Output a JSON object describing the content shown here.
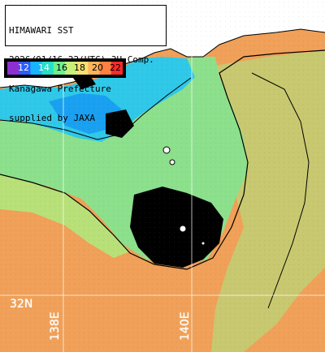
{
  "title": {
    "line1": "HIMAWARI SST",
    "line2": "2026/01/16 22(UTC) 3H Comp.",
    "line3": "Kanagawa Prefecture",
    "line4": "supplied by JAXA"
  },
  "legend": {
    "labels": [
      "12",
      "14",
      "16",
      "18",
      "20",
      "22"
    ],
    "colors": [
      "#8e2fd2",
      "#2a5cff",
      "#18b4ff",
      "#25e0c8",
      "#6ef08a",
      "#c8f078",
      "#f5e070",
      "#ffb45a",
      "#ff8040",
      "#ff2a2a"
    ]
  },
  "coordinates": {
    "lat_label": "32N",
    "lon_label_1": "138E",
    "lon_label_2": "140E"
  },
  "colors": {
    "land": "#ffffff",
    "no_data": "#000000",
    "sea_warm": "#f0a058",
    "sea_mid": "#c8c870",
    "sea_cool": "#8ce08c",
    "sea_cold": "#30c8e8",
    "coastline": "#000000",
    "grid": "#ffffff"
  }
}
